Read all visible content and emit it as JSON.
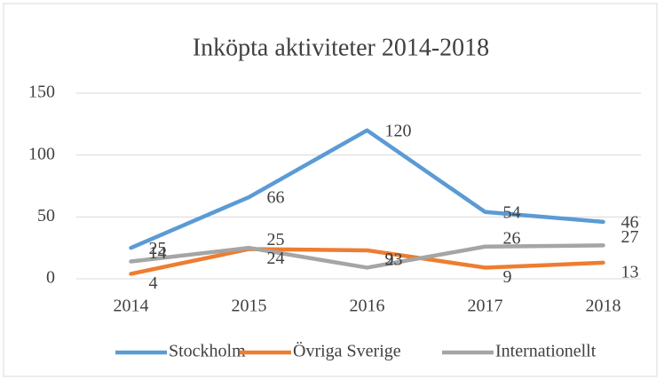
{
  "chart_data": {
    "type": "line",
    "title": "Inköpta aktiviteter 2014-2018",
    "categories": [
      "2014",
      "2015",
      "2016",
      "2017",
      "2018"
    ],
    "series": [
      {
        "name": "Stockholm",
        "color": "#5b9bd5",
        "values": [
          25,
          66,
          120,
          54,
          46
        ]
      },
      {
        "name": "Övriga Sverige",
        "color": "#ed7d31",
        "values": [
          4,
          24,
          23,
          9,
          13
        ]
      },
      {
        "name": "Internationellt",
        "color": "#a5a5a5",
        "values": [
          14,
          25,
          9,
          26,
          27
        ]
      }
    ],
    "ylim": [
      0,
      150
    ],
    "yticks": [
      0,
      50,
      100,
      150
    ],
    "grid": true,
    "legend": "bottom"
  }
}
